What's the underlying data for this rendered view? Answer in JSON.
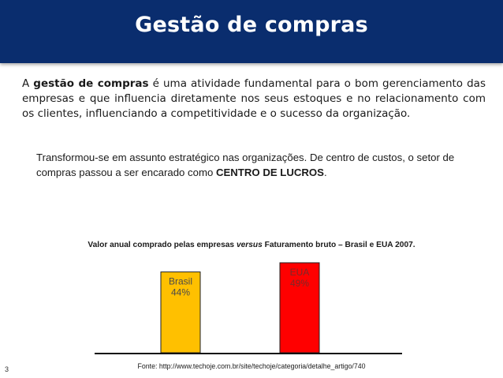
{
  "slide": {
    "title": "Gestão de compras",
    "paragraph1": {
      "prefix": "A ",
      "bold": "gestão de compras",
      "rest": " é uma atividade fundamental para o bom gerenciamento das empresas e que influencia diretamente nos seus estoques e no relacionamento com os clientes, influenciando a competitividade e o sucesso da organização."
    },
    "paragraph2": {
      "text": "Transformou-se em assunto estratégico nas organizações. De centro de custos, o setor de compras passou a ser encarado como ",
      "bold": "CENTRO DE LUCROS",
      "end": "."
    },
    "source": "Fonte: http://www.techoje.com.br/site/techoje/categoria/detalhe_artigo/740",
    "page_number": "3"
  },
  "chart_data": {
    "type": "bar",
    "title_parts": {
      "a": "Valor anual comprado pelas empresas ",
      "italic": "versus",
      "b": " Faturamento bruto – Brasil e EUA 2007."
    },
    "categories": [
      "Brasil",
      "EUA"
    ],
    "values": [
      44,
      49
    ],
    "value_labels": [
      "44%",
      "49%"
    ],
    "colors": [
      "#ffc000",
      "#ff0000"
    ],
    "label_colors": [
      "#4a4a4a",
      "#7a2a2a"
    ],
    "ylim": [
      0,
      55
    ],
    "grid": false,
    "legend": "none"
  }
}
